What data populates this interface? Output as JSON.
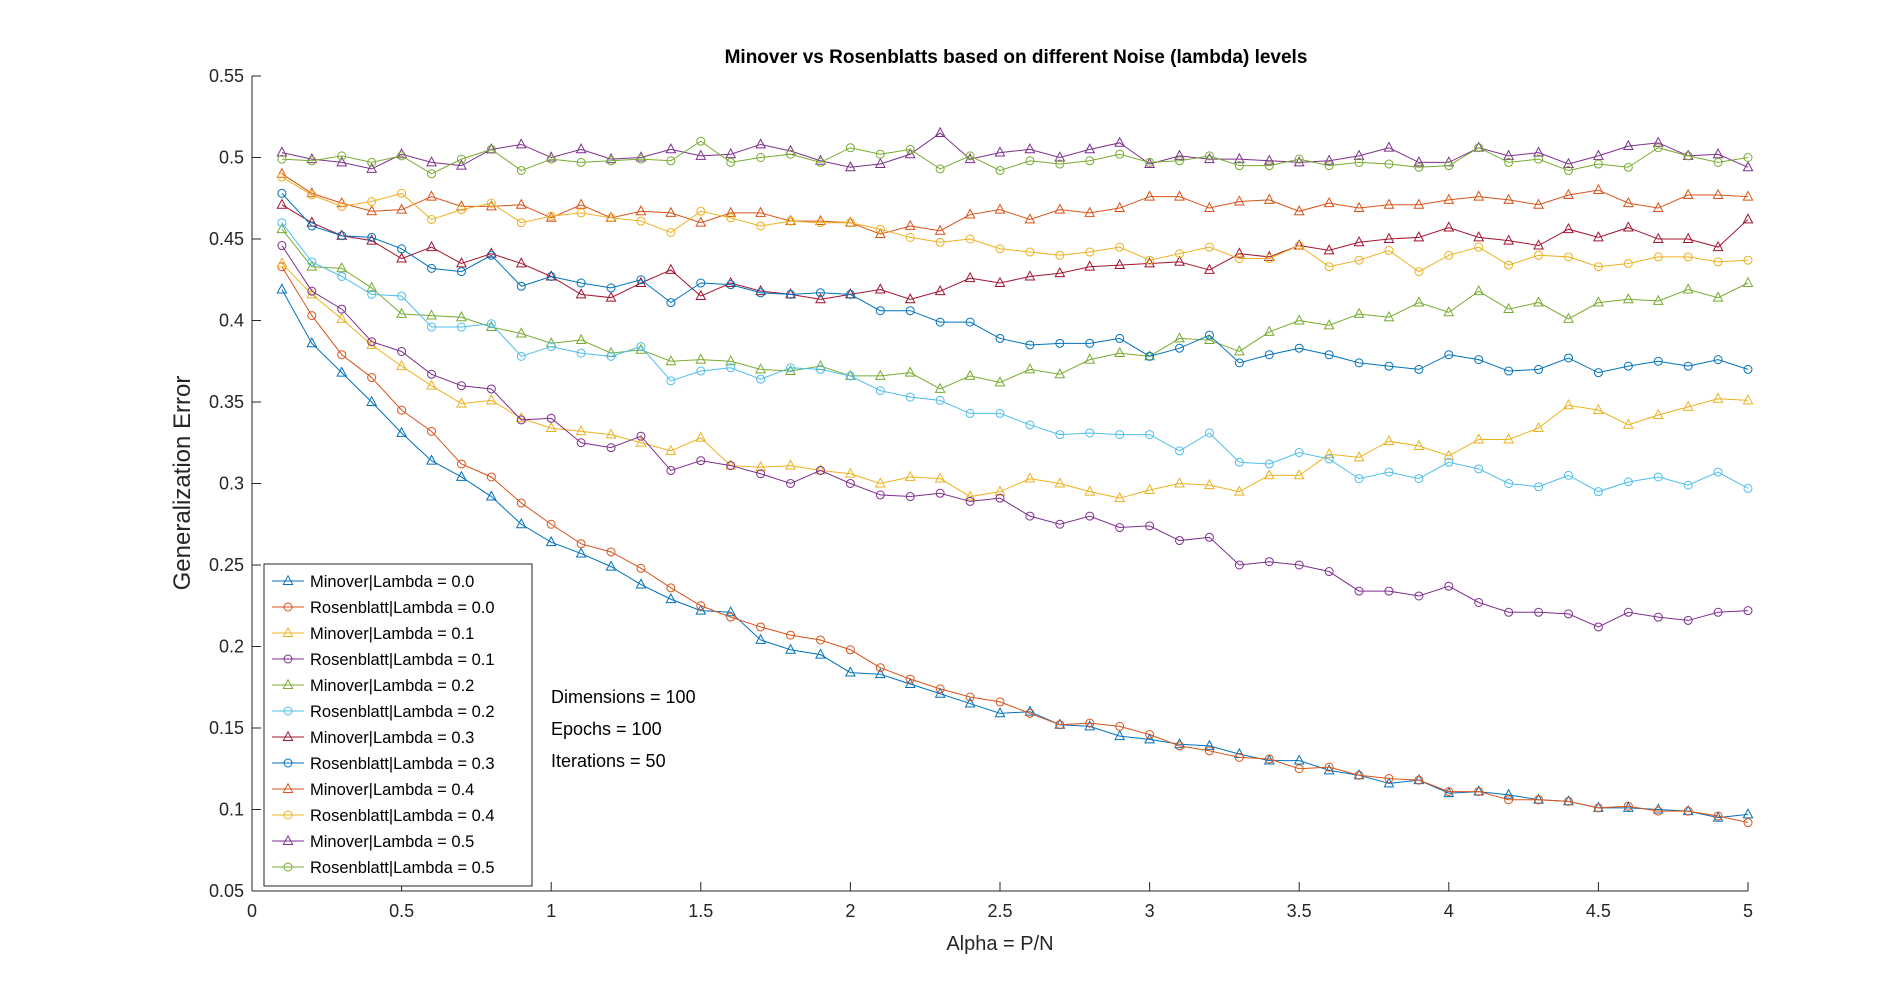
{
  "chart_data": {
    "type": "line",
    "title": "Minover vs Rosenblatts based on different Noise (lambda) levels",
    "xlabel": "Alpha = P/N",
    "ylabel": "Generalization Error",
    "xlim": [
      0,
      5
    ],
    "ylim": [
      0.05,
      0.55
    ],
    "xticks": [
      0,
      0.5,
      1,
      1.5,
      2,
      2.5,
      3,
      3.5,
      4,
      4.5,
      5
    ],
    "xtick_labels": [
      "0",
      "0.5",
      "1",
      "1.5",
      "2",
      "2.5",
      "3",
      "3.5",
      "4",
      "4.5",
      "5"
    ],
    "yticks": [
      0.05,
      0.1,
      0.15,
      0.2,
      0.25,
      0.3,
      0.35,
      0.4,
      0.45,
      0.5,
      0.55
    ],
    "ytick_labels": [
      "0.05",
      "0.1",
      "0.15",
      "0.2",
      "0.25",
      "0.3",
      "0.35",
      "0.4",
      "0.45",
      "0.5",
      "0.55"
    ],
    "grid": false,
    "legend_position": "bottom-left",
    "annotations": [
      "Dimensions = 100",
      "Epochs = 100",
      "Iterations = 50"
    ],
    "x": [
      0.1,
      0.2,
      0.3,
      0.4,
      0.5,
      0.6,
      0.7,
      0.8,
      0.9,
      1.0,
      1.1,
      1.2,
      1.3,
      1.4,
      1.5,
      1.6,
      1.7,
      1.8,
      1.9,
      2.0,
      2.1,
      2.2,
      2.3,
      2.4,
      2.5,
      2.6,
      2.7,
      2.8,
      2.9,
      3.0,
      3.1,
      3.2,
      3.3,
      3.4,
      3.5,
      3.6,
      3.7,
      3.8,
      3.9,
      4.0,
      4.1,
      4.2,
      4.3,
      4.4,
      4.5,
      4.6,
      4.7,
      4.8,
      4.9,
      5.0
    ],
    "series": [
      {
        "name": "Minover|Lambda = 0.0",
        "color": "#0072BD",
        "marker": "triangle",
        "values": [
          0.419,
          0.386,
          0.368,
          0.35,
          0.331,
          0.314,
          0.304,
          0.292,
          0.275,
          0.264,
          0.257,
          0.249,
          0.238,
          0.229,
          0.222,
          0.221,
          0.204,
          0.198,
          0.195,
          0.184,
          0.183,
          0.177,
          0.171,
          0.165,
          0.159,
          0.16,
          0.152,
          0.151,
          0.145,
          0.143,
          0.14,
          0.139,
          0.134,
          0.13,
          0.13,
          0.124,
          0.121,
          0.116,
          0.118,
          0.11,
          0.111,
          0.109,
          0.106,
          0.105,
          0.101,
          0.101,
          0.1,
          0.099,
          0.095,
          0.097
        ]
      },
      {
        "name": "Rosenblatt|Lambda = 0.0",
        "color": "#D95319",
        "marker": "circle",
        "values": [
          0.433,
          0.403,
          0.379,
          0.365,
          0.345,
          0.332,
          0.312,
          0.304,
          0.288,
          0.275,
          0.263,
          0.258,
          0.248,
          0.236,
          0.225,
          0.218,
          0.212,
          0.207,
          0.204,
          0.198,
          0.187,
          0.18,
          0.174,
          0.169,
          0.166,
          0.159,
          0.152,
          0.153,
          0.151,
          0.146,
          0.139,
          0.136,
          0.132,
          0.131,
          0.125,
          0.126,
          0.121,
          0.119,
          0.118,
          0.111,
          0.111,
          0.106,
          0.106,
          0.105,
          0.101,
          0.102,
          0.099,
          0.099,
          0.096,
          0.092
        ]
      },
      {
        "name": "Minover|Lambda = 0.1",
        "color": "#EDB120",
        "marker": "triangle",
        "values": [
          0.435,
          0.416,
          0.401,
          0.385,
          0.372,
          0.36,
          0.349,
          0.351,
          0.34,
          0.334,
          0.332,
          0.33,
          0.325,
          0.32,
          0.328,
          0.311,
          0.31,
          0.311,
          0.308,
          0.306,
          0.3,
          0.304,
          0.303,
          0.292,
          0.295,
          0.303,
          0.3,
          0.295,
          0.291,
          0.296,
          0.3,
          0.299,
          0.295,
          0.305,
          0.305,
          0.318,
          0.316,
          0.326,
          0.323,
          0.317,
          0.327,
          0.327,
          0.334,
          0.348,
          0.345,
          0.336,
          0.342,
          0.347,
          0.352,
          0.351
        ]
      },
      {
        "name": "Rosenblatt|Lambda = 0.1",
        "color": "#7E2F8E",
        "marker": "circle",
        "values": [
          0.446,
          0.418,
          0.407,
          0.387,
          0.381,
          0.367,
          0.36,
          0.358,
          0.339,
          0.34,
          0.325,
          0.322,
          0.329,
          0.308,
          0.314,
          0.311,
          0.306,
          0.3,
          0.308,
          0.3,
          0.293,
          0.292,
          0.294,
          0.289,
          0.291,
          0.28,
          0.275,
          0.28,
          0.273,
          0.274,
          0.265,
          0.267,
          0.25,
          0.252,
          0.25,
          0.246,
          0.234,
          0.234,
          0.231,
          0.237,
          0.227,
          0.221,
          0.221,
          0.22,
          0.212,
          0.221,
          0.218,
          0.216,
          0.221,
          0.222
        ]
      },
      {
        "name": "Minover|Lambda = 0.2",
        "color": "#77AC30",
        "marker": "triangle",
        "values": [
          0.456,
          0.433,
          0.432,
          0.42,
          0.404,
          0.403,
          0.402,
          0.396,
          0.392,
          0.386,
          0.388,
          0.38,
          0.382,
          0.375,
          0.376,
          0.375,
          0.37,
          0.369,
          0.372,
          0.366,
          0.366,
          0.368,
          0.358,
          0.366,
          0.362,
          0.37,
          0.367,
          0.376,
          0.38,
          0.378,
          0.389,
          0.388,
          0.381,
          0.393,
          0.4,
          0.397,
          0.404,
          0.402,
          0.411,
          0.405,
          0.418,
          0.407,
          0.411,
          0.401,
          0.411,
          0.413,
          0.412,
          0.419,
          0.414,
          0.423
        ]
      },
      {
        "name": "Rosenblatt|Lambda = 0.2",
        "color": "#4DBEEE",
        "marker": "circle",
        "values": [
          0.46,
          0.436,
          0.427,
          0.416,
          0.415,
          0.396,
          0.396,
          0.398,
          0.378,
          0.384,
          0.38,
          0.378,
          0.384,
          0.363,
          0.369,
          0.371,
          0.364,
          0.371,
          0.37,
          0.366,
          0.357,
          0.353,
          0.351,
          0.343,
          0.343,
          0.336,
          0.33,
          0.331,
          0.33,
          0.33,
          0.32,
          0.331,
          0.313,
          0.312,
          0.319,
          0.315,
          0.303,
          0.307,
          0.303,
          0.313,
          0.309,
          0.3,
          0.298,
          0.305,
          0.295,
          0.301,
          0.304,
          0.299,
          0.307,
          0.297
        ]
      },
      {
        "name": "Minover|Lambda = 0.3",
        "color": "#A2142F",
        "marker": "triangle",
        "values": [
          0.471,
          0.46,
          0.452,
          0.449,
          0.438,
          0.445,
          0.435,
          0.441,
          0.435,
          0.427,
          0.416,
          0.414,
          0.423,
          0.431,
          0.415,
          0.423,
          0.418,
          0.416,
          0.413,
          0.416,
          0.419,
          0.413,
          0.418,
          0.426,
          0.423,
          0.427,
          0.429,
          0.433,
          0.434,
          0.435,
          0.436,
          0.431,
          0.441,
          0.439,
          0.446,
          0.443,
          0.448,
          0.45,
          0.451,
          0.457,
          0.451,
          0.449,
          0.446,
          0.456,
          0.451,
          0.457,
          0.45,
          0.45,
          0.445,
          0.462
        ]
      },
      {
        "name": "Rosenblatt|Lambda = 0.3",
        "color": "#0072BD",
        "marker": "circle",
        "values": [
          0.478,
          0.458,
          0.452,
          0.451,
          0.444,
          0.432,
          0.43,
          0.44,
          0.421,
          0.427,
          0.423,
          0.42,
          0.425,
          0.411,
          0.423,
          0.422,
          0.417,
          0.416,
          0.417,
          0.416,
          0.406,
          0.406,
          0.399,
          0.399,
          0.389,
          0.385,
          0.386,
          0.386,
          0.389,
          0.378,
          0.383,
          0.391,
          0.374,
          0.379,
          0.383,
          0.379,
          0.374,
          0.372,
          0.37,
          0.379,
          0.376,
          0.369,
          0.37,
          0.377,
          0.368,
          0.372,
          0.375,
          0.372,
          0.376,
          0.37
        ]
      },
      {
        "name": "Minover|Lambda = 0.4",
        "color": "#D95319",
        "marker": "triangle",
        "values": [
          0.49,
          0.478,
          0.472,
          0.467,
          0.468,
          0.476,
          0.47,
          0.47,
          0.471,
          0.463,
          0.471,
          0.463,
          0.467,
          0.466,
          0.46,
          0.466,
          0.466,
          0.461,
          0.461,
          0.46,
          0.453,
          0.458,
          0.455,
          0.465,
          0.468,
          0.462,
          0.468,
          0.466,
          0.469,
          0.476,
          0.476,
          0.469,
          0.473,
          0.474,
          0.467,
          0.472,
          0.469,
          0.471,
          0.471,
          0.474,
          0.476,
          0.474,
          0.471,
          0.477,
          0.48,
          0.472,
          0.469,
          0.477,
          0.477,
          0.476
        ]
      },
      {
        "name": "Rosenblatt|Lambda = 0.4",
        "color": "#EDB120",
        "marker": "circle",
        "values": [
          0.488,
          0.477,
          0.47,
          0.473,
          0.478,
          0.462,
          0.468,
          0.472,
          0.46,
          0.464,
          0.466,
          0.463,
          0.461,
          0.454,
          0.467,
          0.463,
          0.458,
          0.461,
          0.46,
          0.46,
          0.456,
          0.451,
          0.448,
          0.45,
          0.444,
          0.442,
          0.44,
          0.442,
          0.445,
          0.437,
          0.441,
          0.445,
          0.438,
          0.438,
          0.446,
          0.433,
          0.437,
          0.443,
          0.43,
          0.44,
          0.445,
          0.434,
          0.44,
          0.439,
          0.433,
          0.435,
          0.439,
          0.439,
          0.436,
          0.437
        ]
      },
      {
        "name": "Minover|Lambda = 0.5",
        "color": "#7E2F8E",
        "marker": "triangle",
        "values": [
          0.503,
          0.499,
          0.497,
          0.493,
          0.502,
          0.497,
          0.495,
          0.505,
          0.508,
          0.5,
          0.505,
          0.499,
          0.5,
          0.505,
          0.501,
          0.502,
          0.508,
          0.504,
          0.498,
          0.494,
          0.496,
          0.502,
          0.515,
          0.499,
          0.503,
          0.505,
          0.5,
          0.505,
          0.509,
          0.496,
          0.501,
          0.499,
          0.499,
          0.498,
          0.497,
          0.498,
          0.501,
          0.506,
          0.497,
          0.497,
          0.506,
          0.501,
          0.503,
          0.496,
          0.501,
          0.507,
          0.509,
          0.501,
          0.502,
          0.494
        ]
      },
      {
        "name": "Rosenblatt|Lambda = 0.5",
        "color": "#77AC30",
        "marker": "circle",
        "values": [
          0.499,
          0.498,
          0.501,
          0.497,
          0.501,
          0.49,
          0.499,
          0.505,
          0.492,
          0.499,
          0.497,
          0.498,
          0.499,
          0.498,
          0.51,
          0.497,
          0.5,
          0.502,
          0.497,
          0.506,
          0.502,
          0.505,
          0.493,
          0.501,
          0.492,
          0.498,
          0.496,
          0.498,
          0.502,
          0.497,
          0.498,
          0.501,
          0.495,
          0.495,
          0.499,
          0.495,
          0.497,
          0.496,
          0.494,
          0.495,
          0.506,
          0.497,
          0.499,
          0.492,
          0.496,
          0.494,
          0.506,
          0.501,
          0.497,
          0.5
        ]
      }
    ]
  }
}
